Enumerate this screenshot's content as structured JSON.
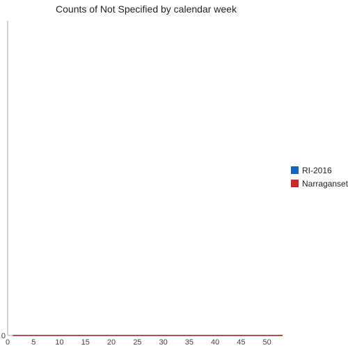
{
  "chart_data": {
    "type": "line",
    "title": "Counts of Not Specified by calendar week",
    "xlabel": "",
    "ylabel": "",
    "xlim": [
      0,
      53
    ],
    "ylim": [
      0,
      1
    ],
    "x_ticks": [
      0,
      5,
      10,
      15,
      20,
      25,
      30,
      35,
      40,
      45,
      50
    ],
    "y_ticks": [
      0
    ],
    "grid": false,
    "legend_position": "right",
    "series": [
      {
        "name": "RI-2016",
        "color": "#1565c0",
        "x": [
          1,
          2,
          3,
          4,
          5,
          6,
          7,
          8,
          9,
          10,
          11,
          12,
          13,
          14,
          15,
          16,
          17,
          18,
          19,
          20,
          21,
          22,
          23,
          24,
          25,
          26,
          27,
          28,
          29,
          30,
          31,
          32,
          33,
          34,
          35,
          36,
          37,
          38,
          39,
          40,
          41,
          42,
          43,
          44,
          45,
          46,
          47,
          48,
          49,
          50,
          51,
          52,
          53
        ],
        "values": [
          0,
          0,
          0,
          0,
          0,
          0,
          0,
          0,
          0,
          0,
          0,
          0,
          0,
          0,
          0,
          0,
          0,
          0,
          0,
          0,
          0,
          0,
          0,
          0,
          0,
          0,
          0,
          0,
          0,
          0,
          0,
          0,
          0,
          0,
          0,
          0,
          0,
          0,
          0,
          0,
          0,
          0,
          0,
          0,
          0,
          0,
          0,
          0,
          0,
          0,
          0,
          0,
          0
        ]
      },
      {
        "name": "Narragansett",
        "color": "#c62828",
        "x": [
          1,
          2,
          3,
          4,
          5,
          6,
          7,
          8,
          9,
          10,
          11,
          12,
          13,
          14,
          15,
          16,
          17,
          18,
          19,
          20,
          21,
          22,
          23,
          24,
          25,
          26,
          27,
          28,
          29,
          30,
          31,
          32,
          33,
          34,
          35,
          36,
          37,
          38,
          39,
          40,
          41,
          42,
          43,
          44,
          45,
          46,
          47,
          48,
          49,
          50,
          51,
          52,
          53
        ],
        "values": [
          0,
          0,
          0,
          0,
          0,
          0,
          0,
          0,
          0,
          0,
          0,
          0,
          0,
          0,
          0,
          0,
          0,
          0,
          0,
          0,
          0,
          0,
          0,
          0,
          0,
          0,
          0,
          0,
          0,
          0,
          0,
          0,
          0,
          0,
          0,
          0,
          0,
          0,
          0,
          0,
          0,
          0,
          0,
          0,
          0,
          0,
          0,
          0,
          0,
          0,
          0,
          0,
          0
        ]
      }
    ]
  }
}
